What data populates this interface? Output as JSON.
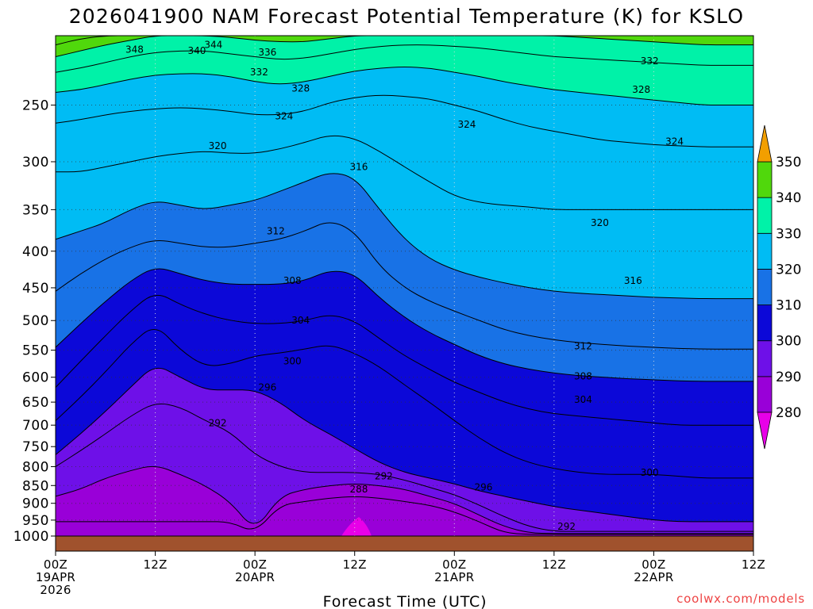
{
  "chart_data": {
    "type": "heatmap",
    "title": "2026041900 NAM Forecast Potential Temperature (K) for KSLO",
    "xlabel": "Forecast Time (UTC)",
    "ylabel": "",
    "y_scale": "log-pressure",
    "ylim_hPa": [
      1000,
      200
    ],
    "xlim_hours": [
      0,
      84
    ],
    "y_ticks": [
      {
        "p": 250,
        "label": "250"
      },
      {
        "p": 300,
        "label": "300"
      },
      {
        "p": 350,
        "label": "350"
      },
      {
        "p": 400,
        "label": "400"
      },
      {
        "p": 450,
        "label": "450"
      },
      {
        "p": 500,
        "label": "500"
      },
      {
        "p": 550,
        "label": "550"
      },
      {
        "p": 600,
        "label": "600"
      },
      {
        "p": 650,
        "label": "650"
      },
      {
        "p": 700,
        "label": "700"
      },
      {
        "p": 750,
        "label": "750"
      },
      {
        "p": 800,
        "label": "800"
      },
      {
        "p": 850,
        "label": "850"
      },
      {
        "p": 900,
        "label": "900"
      },
      {
        "p": 950,
        "label": "950"
      },
      {
        "p": 1000,
        "label": "1000"
      }
    ],
    "x_ticks": [
      {
        "hour": 0,
        "lines": [
          "00Z",
          "19APR",
          "2026"
        ]
      },
      {
        "hour": 12,
        "lines": [
          "12Z"
        ]
      },
      {
        "hour": 24,
        "lines": [
          "00Z",
          "20APR"
        ]
      },
      {
        "hour": 36,
        "lines": [
          "12Z"
        ]
      },
      {
        "hour": 48,
        "lines": [
          "00Z",
          "21APR"
        ]
      },
      {
        "hour": 60,
        "lines": [
          "12Z"
        ]
      },
      {
        "hour": 72,
        "lines": [
          "00Z",
          "22APR"
        ]
      },
      {
        "hour": 84,
        "lines": [
          "12Z"
        ]
      }
    ],
    "colorbar": {
      "levels": [
        280,
        290,
        300,
        310,
        320,
        330,
        340,
        350
      ],
      "labels": [
        "280",
        "290",
        "300",
        "310",
        "320",
        "330",
        "340",
        "350"
      ],
      "colors": [
        "#9900d8",
        "#6e10e8",
        "#0c08d8",
        "#1872e6",
        "#00bcf4",
        "#00f2a8",
        "#50d80c",
        "#f2f200",
        "#f29f00"
      ],
      "below_color": "#e800e8",
      "above_color": "#f29f00"
    },
    "contour_hours": [
      0,
      3,
      6,
      9,
      12,
      15,
      18,
      21,
      24,
      27,
      30,
      33,
      36,
      39,
      42,
      45,
      48,
      51,
      54,
      57,
      60,
      63,
      66,
      69,
      72,
      75,
      78,
      81,
      84
    ],
    "contours": [
      {
        "theta": 284,
        "p": [
          955,
          955,
          955,
          955,
          955,
          955,
          955,
          955,
          990,
          905,
          895,
          885,
          880,
          885,
          895,
          905,
          925,
          955,
          990,
          995,
          995,
          995,
          995,
          995,
          995,
          995,
          995,
          995,
          995
        ]
      },
      {
        "theta": 288,
        "p": [
          880,
          860,
          830,
          810,
          795,
          820,
          850,
          895,
          985,
          880,
          860,
          850,
          845,
          850,
          860,
          880,
          900,
          935,
          970,
          990,
          992,
          992,
          992,
          992,
          992,
          992,
          992,
          992,
          992
        ]
      },
      {
        "theta": 292,
        "p": [
          800,
          760,
          720,
          680,
          650,
          660,
          690,
          715,
          770,
          800,
          815,
          815,
          815,
          820,
          835,
          855,
          875,
          905,
          940,
          970,
          985,
          985,
          985,
          985,
          985,
          985,
          985,
          985,
          985
        ]
      },
      {
        "theta": 296,
        "p": [
          770,
          720,
          670,
          620,
          575,
          600,
          625,
          625,
          625,
          650,
          690,
          720,
          755,
          790,
          815,
          830,
          845,
          865,
          880,
          895,
          910,
          920,
          930,
          940,
          950,
          955,
          955,
          955,
          955
        ]
      },
      {
        "theta": 300,
        "p": [
          690,
          640,
          590,
          540,
          505,
          550,
          580,
          575,
          560,
          555,
          548,
          540,
          555,
          580,
          615,
          650,
          690,
          730,
          765,
          790,
          805,
          815,
          820,
          820,
          820,
          825,
          830,
          830,
          830
        ]
      },
      {
        "theta": 304,
        "p": [
          620,
          570,
          525,
          485,
          455,
          475,
          490,
          500,
          505,
          505,
          500,
          490,
          500,
          530,
          560,
          585,
          610,
          630,
          650,
          665,
          675,
          680,
          685,
          690,
          695,
          700,
          700,
          700,
          700
        ]
      },
      {
        "theta": 308,
        "p": [
          545,
          505,
          470,
          440,
          420,
          430,
          440,
          445,
          445,
          445,
          440,
          425,
          430,
          465,
          495,
          520,
          540,
          560,
          575,
          585,
          592,
          597,
          600,
          603,
          605,
          607,
          608,
          608,
          608
        ]
      },
      {
        "theta": 312,
        "p": [
          455,
          430,
          410,
          395,
          385,
          390,
          395,
          395,
          390,
          385,
          375,
          362,
          375,
          420,
          450,
          470,
          485,
          500,
          515,
          525,
          532,
          537,
          540,
          543,
          545,
          547,
          548,
          548,
          548
        ]
      },
      {
        "theta": 316,
        "p": [
          385,
          375,
          365,
          350,
          340,
          345,
          350,
          345,
          340,
          330,
          320,
          310,
          315,
          350,
          385,
          410,
          425,
          435,
          443,
          450,
          455,
          458,
          460,
          462,
          464,
          465,
          466,
          466,
          466
        ]
      },
      {
        "theta": 320,
        "p": [
          310,
          310,
          305,
          300,
          295,
          292,
          290,
          292,
          292,
          288,
          282,
          275,
          278,
          290,
          305,
          320,
          335,
          342,
          345,
          347,
          350,
          350,
          350,
          350,
          350,
          350,
          350,
          350,
          350
        ]
      },
      {
        "theta": 324,
        "p": [
          265,
          262,
          258,
          255,
          253,
          252,
          253,
          255,
          258,
          258,
          255,
          248,
          244,
          242,
          243,
          245,
          250,
          255,
          262,
          268,
          272,
          276,
          280,
          282,
          284,
          285,
          286,
          286,
          286
        ]
      },
      {
        "theta": 328,
        "p": [
          240,
          238,
          234,
          230,
          227,
          226,
          226,
          228,
          232,
          234,
          232,
          228,
          224,
          222,
          221,
          222,
          225,
          228,
          232,
          235,
          238,
          240,
          242,
          244,
          246,
          248,
          250,
          250,
          250
        ]
      },
      {
        "theta": 332,
        "p": [
          225,
          222,
          218,
          214,
          211,
          210,
          210,
          212,
          214,
          216,
          215,
          212,
          209,
          207,
          206,
          206,
          207,
          208,
          210,
          212,
          214,
          215,
          216,
          217,
          218,
          219,
          220,
          220,
          220
        ]
      },
      {
        "theta": 336,
        "p": [
          214,
          210,
          206,
          203,
          200,
          200,
          200,
          201,
          203,
          204,
          204,
          202,
          200,
          200,
          200,
          200,
          200,
          200,
          200,
          200,
          200,
          201,
          202,
          203,
          204,
          205,
          206,
          206,
          206
        ]
      },
      {
        "theta": 340,
        "p": [
          206,
          202,
          200,
          200,
          200,
          200,
          200,
          200,
          200,
          200,
          200,
          200,
          200,
          200,
          200,
          200,
          200,
          200,
          200,
          200,
          200,
          200,
          200,
          200,
          200,
          200,
          200,
          200,
          200
        ]
      },
      {
        "theta": 344,
        "p": [
          200,
          200,
          200,
          200,
          200,
          200,
          200,
          200,
          200,
          200,
          200,
          200,
          200,
          200,
          200,
          200,
          200,
          200,
          200,
          200,
          200,
          200,
          200,
          200,
          200,
          200,
          200,
          200,
          200
        ]
      }
    ],
    "contour_labels": [
      {
        "text": "348",
        "hour": 9.5,
        "p": 209
      },
      {
        "text": "344",
        "hour": 19,
        "p": 206
      },
      {
        "text": "340",
        "hour": 17,
        "p": 210
      },
      {
        "text": "336",
        "hour": 25.5,
        "p": 211
      },
      {
        "text": "332",
        "hour": 24.5,
        "p": 225
      },
      {
        "text": "328",
        "hour": 29.5,
        "p": 237
      },
      {
        "text": "324",
        "hour": 27.5,
        "p": 259
      },
      {
        "text": "320",
        "hour": 19.5,
        "p": 285
      },
      {
        "text": "316",
        "hour": 36.5,
        "p": 305
      },
      {
        "text": "312",
        "hour": 26.5,
        "p": 375
      },
      {
        "text": "308",
        "hour": 28.5,
        "p": 440
      },
      {
        "text": "304",
        "hour": 29.5,
        "p": 500
      },
      {
        "text": "300",
        "hour": 28.5,
        "p": 570
      },
      {
        "text": "296",
        "hour": 25.5,
        "p": 620
      },
      {
        "text": "292",
        "hour": 19.5,
        "p": 695
      },
      {
        "text": "288",
        "hour": 36.5,
        "p": 860
      },
      {
        "text": "292",
        "hour": 39.5,
        "p": 825
      },
      {
        "text": "296",
        "hour": 51.5,
        "p": 855
      },
      {
        "text": "292",
        "hour": 61.5,
        "p": 970
      },
      {
        "text": "324",
        "hour": 49.5,
        "p": 266
      },
      {
        "text": "332",
        "hour": 71.5,
        "p": 217
      },
      {
        "text": "328",
        "hour": 70.5,
        "p": 238
      },
      {
        "text": "324",
        "hour": 74.5,
        "p": 281
      },
      {
        "text": "320",
        "hour": 65.5,
        "p": 365
      },
      {
        "text": "316",
        "hour": 69.5,
        "p": 440
      },
      {
        "text": "312",
        "hour": 63.5,
        "p": 543
      },
      {
        "text": "308",
        "hour": 63.5,
        "p": 598
      },
      {
        "text": "304",
        "hour": 63.5,
        "p": 645
      },
      {
        "text": "300",
        "hour": 71.5,
        "p": 815
      }
    ],
    "ground_color": "#a0522d"
  },
  "credit": "coolwx.com/models"
}
